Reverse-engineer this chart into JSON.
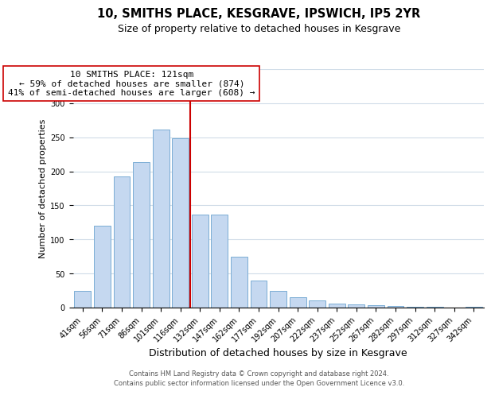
{
  "title": "10, SMITHS PLACE, KESGRAVE, IPSWICH, IP5 2YR",
  "subtitle": "Size of property relative to detached houses in Kesgrave",
  "xlabel": "Distribution of detached houses by size in Kesgrave",
  "ylabel": "Number of detached properties",
  "bar_color": "#c5d8f0",
  "bar_edge_color": "#7aadd4",
  "categories": [
    "41sqm",
    "56sqm",
    "71sqm",
    "86sqm",
    "101sqm",
    "116sqm",
    "132sqm",
    "147sqm",
    "162sqm",
    "177sqm",
    "192sqm",
    "207sqm",
    "222sqm",
    "237sqm",
    "252sqm",
    "267sqm",
    "282sqm",
    "297sqm",
    "312sqm",
    "327sqm",
    "342sqm"
  ],
  "values": [
    24,
    120,
    192,
    214,
    261,
    248,
    137,
    136,
    75,
    40,
    25,
    15,
    10,
    6,
    5,
    3,
    2,
    1,
    1,
    0,
    1
  ],
  "ylim": [
    0,
    350
  ],
  "yticks": [
    0,
    50,
    100,
    150,
    200,
    250,
    300,
    350
  ],
  "vline_x": 5.5,
  "vline_color": "#cc0000",
  "annotation_text": "10 SMITHS PLACE: 121sqm\n← 59% of detached houses are smaller (874)\n41% of semi-detached houses are larger (608) →",
  "annotation_box_color": "#ffffff",
  "annotation_box_edge_color": "#cc0000",
  "footnote1": "Contains HM Land Registry data © Crown copyright and database right 2024.",
  "footnote2": "Contains public sector information licensed under the Open Government Licence v3.0.",
  "background_color": "#ffffff",
  "grid_color": "#d0dce8",
  "title_fontsize": 10.5,
  "subtitle_fontsize": 9,
  "xlabel_fontsize": 9,
  "ylabel_fontsize": 8,
  "tick_fontsize": 7,
  "annotation_fontsize": 8,
  "footnote_fontsize": 6
}
